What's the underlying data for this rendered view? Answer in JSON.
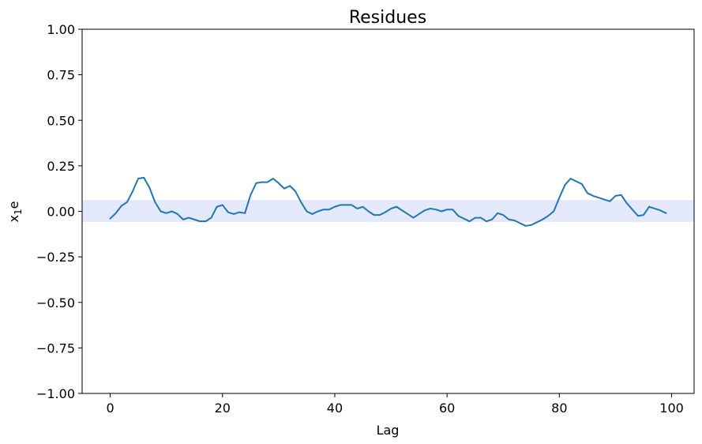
{
  "chart_data": {
    "type": "line",
    "title": "Residues",
    "xlabel": "Lag",
    "ylabel_base": "x",
    "ylabel_sub": "1",
    "ylabel_tail": "e",
    "xlim": [
      -5,
      104
    ],
    "ylim": [
      -1.0,
      1.0
    ],
    "x_ticks": [
      0,
      20,
      40,
      60,
      80,
      100
    ],
    "x_tick_labels": [
      "0",
      "20",
      "40",
      "60",
      "80",
      "100"
    ],
    "y_ticks": [
      -1.0,
      -0.75,
      -0.5,
      -0.25,
      0.0,
      0.25,
      0.5,
      0.75,
      1.0
    ],
    "y_tick_labels": [
      "−1.00",
      "−0.75",
      "−0.50",
      "−0.25",
      "0.00",
      "0.25",
      "0.50",
      "0.75",
      "1.00"
    ],
    "band": {
      "lower": -0.058,
      "upper": 0.062,
      "color": "#e3e9fb"
    },
    "grid": false,
    "series": [
      {
        "color": "#1f77b4",
        "x": [
          0,
          1,
          2,
          3,
          4,
          5,
          6,
          7,
          8,
          9,
          10,
          11,
          12,
          13,
          14,
          15,
          16,
          17,
          18,
          19,
          20,
          21,
          22,
          23,
          24,
          25,
          26,
          27,
          28,
          29,
          30,
          31,
          32,
          33,
          34,
          35,
          36,
          37,
          38,
          39,
          40,
          41,
          42,
          43,
          44,
          45,
          46,
          47,
          48,
          49,
          50,
          51,
          52,
          53,
          54,
          55,
          56,
          57,
          58,
          59,
          60,
          61,
          62,
          63,
          64,
          65,
          66,
          67,
          68,
          69,
          70,
          71,
          72,
          73,
          74,
          75,
          76,
          77,
          78,
          79,
          80,
          81,
          82,
          83,
          84,
          85,
          86,
          87,
          88,
          89,
          90,
          91,
          92,
          93,
          94,
          95,
          96,
          97,
          98,
          99
        ],
        "values": [
          -0.04,
          -0.01,
          0.03,
          0.05,
          0.11,
          0.18,
          0.185,
          0.13,
          0.05,
          0.0,
          -0.01,
          0.0,
          -0.015,
          -0.045,
          -0.035,
          -0.045,
          -0.055,
          -0.055,
          -0.035,
          0.025,
          0.035,
          -0.005,
          -0.015,
          -0.005,
          -0.01,
          0.09,
          0.155,
          0.16,
          0.16,
          0.18,
          0.155,
          0.125,
          0.14,
          0.11,
          0.05,
          0.0,
          -0.015,
          0.0,
          0.01,
          0.01,
          0.025,
          0.035,
          0.035,
          0.035,
          0.015,
          0.025,
          0.0,
          -0.02,
          -0.02,
          -0.005,
          0.015,
          0.025,
          0.005,
          -0.015,
          -0.035,
          -0.015,
          0.005,
          0.015,
          0.01,
          0.0,
          0.01,
          0.01,
          -0.025,
          -0.04,
          -0.055,
          -0.035,
          -0.035,
          -0.055,
          -0.045,
          -0.01,
          -0.02,
          -0.045,
          -0.05,
          -0.065,
          -0.08,
          -0.075,
          -0.06,
          -0.045,
          -0.025,
          0.0,
          0.075,
          0.145,
          0.18,
          0.165,
          0.15,
          0.1,
          0.085,
          0.075,
          0.065,
          0.055,
          0.085,
          0.09,
          0.045,
          0.01,
          -0.025,
          -0.02,
          0.025,
          0.015,
          0.005,
          -0.01
        ]
      }
    ]
  }
}
